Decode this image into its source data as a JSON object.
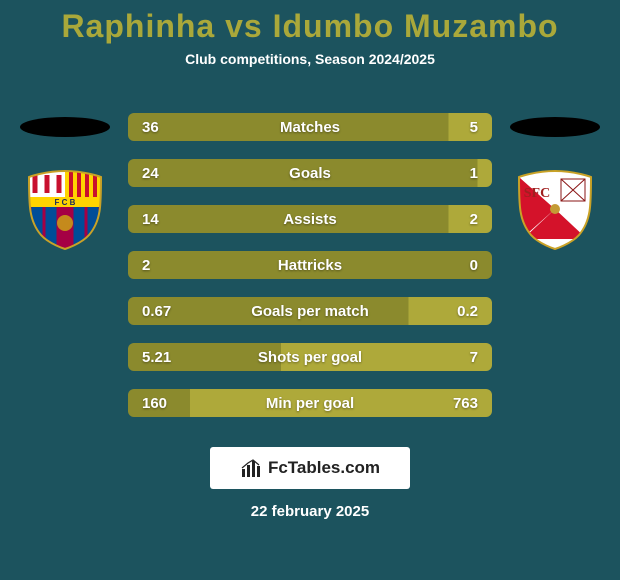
{
  "title": {
    "player1": "Raphinha",
    "vs": "vs",
    "player2": "Idumbo Muzambo",
    "color": "#aaa83a"
  },
  "subtitle": "Club competitions, Season 2024/2025",
  "colors": {
    "row_bg_left": "#8b8a2d",
    "row_bg_right": "#aea93a",
    "text": "#ffffff",
    "bg": "#1c535e"
  },
  "rows": [
    {
      "label": "Matches",
      "left": "36",
      "right": "5",
      "left_pct": 88
    },
    {
      "label": "Goals",
      "left": "24",
      "right": "1",
      "left_pct": 96
    },
    {
      "label": "Assists",
      "left": "14",
      "right": "2",
      "left_pct": 88
    },
    {
      "label": "Hattricks",
      "left": "2",
      "right": "0",
      "left_pct": 100
    },
    {
      "label": "Goals per match",
      "left": "0.67",
      "right": "0.2",
      "left_pct": 77
    },
    {
      "label": "Shots per goal",
      "left": "5.21",
      "right": "7",
      "left_pct": 42
    },
    {
      "label": "Min per goal",
      "left": "160",
      "right": "763",
      "left_pct": 17
    }
  ],
  "clubs": {
    "left": {
      "name": "FC Barcelona",
      "abbrev": "FCB"
    },
    "right": {
      "name": "Sevilla FC"
    }
  },
  "badge": {
    "site": "FcTables.com"
  },
  "date": "22 february 2025"
}
